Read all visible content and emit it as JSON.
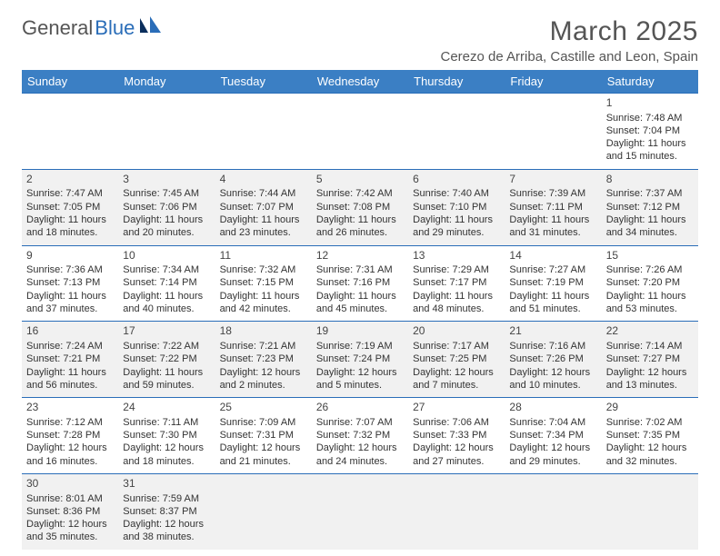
{
  "logo": {
    "part1": "General",
    "part2": "Blue"
  },
  "title": "March 2025",
  "location": "Cerezo de Arriba, Castille and Leon, Spain",
  "headers": [
    "Sunday",
    "Monday",
    "Tuesday",
    "Wednesday",
    "Thursday",
    "Friday",
    "Saturday"
  ],
  "colors": {
    "header_bg": "#3b7fc4",
    "header_fg": "#ffffff",
    "rule": "#2a6db8",
    "alt_row": "#f1f1f1",
    "text": "#333333",
    "title": "#555555"
  },
  "weeks": [
    [
      null,
      null,
      null,
      null,
      null,
      null,
      {
        "n": "1",
        "sr": "Sunrise: 7:48 AM",
        "ss": "Sunset: 7:04 PM",
        "dl": "Daylight: 11 hours and 15 minutes."
      }
    ],
    [
      {
        "n": "2",
        "sr": "Sunrise: 7:47 AM",
        "ss": "Sunset: 7:05 PM",
        "dl": "Daylight: 11 hours and 18 minutes."
      },
      {
        "n": "3",
        "sr": "Sunrise: 7:45 AM",
        "ss": "Sunset: 7:06 PM",
        "dl": "Daylight: 11 hours and 20 minutes."
      },
      {
        "n": "4",
        "sr": "Sunrise: 7:44 AM",
        "ss": "Sunset: 7:07 PM",
        "dl": "Daylight: 11 hours and 23 minutes."
      },
      {
        "n": "5",
        "sr": "Sunrise: 7:42 AM",
        "ss": "Sunset: 7:08 PM",
        "dl": "Daylight: 11 hours and 26 minutes."
      },
      {
        "n": "6",
        "sr": "Sunrise: 7:40 AM",
        "ss": "Sunset: 7:10 PM",
        "dl": "Daylight: 11 hours and 29 minutes."
      },
      {
        "n": "7",
        "sr": "Sunrise: 7:39 AM",
        "ss": "Sunset: 7:11 PM",
        "dl": "Daylight: 11 hours and 31 minutes."
      },
      {
        "n": "8",
        "sr": "Sunrise: 7:37 AM",
        "ss": "Sunset: 7:12 PM",
        "dl": "Daylight: 11 hours and 34 minutes."
      }
    ],
    [
      {
        "n": "9",
        "sr": "Sunrise: 7:36 AM",
        "ss": "Sunset: 7:13 PM",
        "dl": "Daylight: 11 hours and 37 minutes."
      },
      {
        "n": "10",
        "sr": "Sunrise: 7:34 AM",
        "ss": "Sunset: 7:14 PM",
        "dl": "Daylight: 11 hours and 40 minutes."
      },
      {
        "n": "11",
        "sr": "Sunrise: 7:32 AM",
        "ss": "Sunset: 7:15 PM",
        "dl": "Daylight: 11 hours and 42 minutes."
      },
      {
        "n": "12",
        "sr": "Sunrise: 7:31 AM",
        "ss": "Sunset: 7:16 PM",
        "dl": "Daylight: 11 hours and 45 minutes."
      },
      {
        "n": "13",
        "sr": "Sunrise: 7:29 AM",
        "ss": "Sunset: 7:17 PM",
        "dl": "Daylight: 11 hours and 48 minutes."
      },
      {
        "n": "14",
        "sr": "Sunrise: 7:27 AM",
        "ss": "Sunset: 7:19 PM",
        "dl": "Daylight: 11 hours and 51 minutes."
      },
      {
        "n": "15",
        "sr": "Sunrise: 7:26 AM",
        "ss": "Sunset: 7:20 PM",
        "dl": "Daylight: 11 hours and 53 minutes."
      }
    ],
    [
      {
        "n": "16",
        "sr": "Sunrise: 7:24 AM",
        "ss": "Sunset: 7:21 PM",
        "dl": "Daylight: 11 hours and 56 minutes."
      },
      {
        "n": "17",
        "sr": "Sunrise: 7:22 AM",
        "ss": "Sunset: 7:22 PM",
        "dl": "Daylight: 11 hours and 59 minutes."
      },
      {
        "n": "18",
        "sr": "Sunrise: 7:21 AM",
        "ss": "Sunset: 7:23 PM",
        "dl": "Daylight: 12 hours and 2 minutes."
      },
      {
        "n": "19",
        "sr": "Sunrise: 7:19 AM",
        "ss": "Sunset: 7:24 PM",
        "dl": "Daylight: 12 hours and 5 minutes."
      },
      {
        "n": "20",
        "sr": "Sunrise: 7:17 AM",
        "ss": "Sunset: 7:25 PM",
        "dl": "Daylight: 12 hours and 7 minutes."
      },
      {
        "n": "21",
        "sr": "Sunrise: 7:16 AM",
        "ss": "Sunset: 7:26 PM",
        "dl": "Daylight: 12 hours and 10 minutes."
      },
      {
        "n": "22",
        "sr": "Sunrise: 7:14 AM",
        "ss": "Sunset: 7:27 PM",
        "dl": "Daylight: 12 hours and 13 minutes."
      }
    ],
    [
      {
        "n": "23",
        "sr": "Sunrise: 7:12 AM",
        "ss": "Sunset: 7:28 PM",
        "dl": "Daylight: 12 hours and 16 minutes."
      },
      {
        "n": "24",
        "sr": "Sunrise: 7:11 AM",
        "ss": "Sunset: 7:30 PM",
        "dl": "Daylight: 12 hours and 18 minutes."
      },
      {
        "n": "25",
        "sr": "Sunrise: 7:09 AM",
        "ss": "Sunset: 7:31 PM",
        "dl": "Daylight: 12 hours and 21 minutes."
      },
      {
        "n": "26",
        "sr": "Sunrise: 7:07 AM",
        "ss": "Sunset: 7:32 PM",
        "dl": "Daylight: 12 hours and 24 minutes."
      },
      {
        "n": "27",
        "sr": "Sunrise: 7:06 AM",
        "ss": "Sunset: 7:33 PM",
        "dl": "Daylight: 12 hours and 27 minutes."
      },
      {
        "n": "28",
        "sr": "Sunrise: 7:04 AM",
        "ss": "Sunset: 7:34 PM",
        "dl": "Daylight: 12 hours and 29 minutes."
      },
      {
        "n": "29",
        "sr": "Sunrise: 7:02 AM",
        "ss": "Sunset: 7:35 PM",
        "dl": "Daylight: 12 hours and 32 minutes."
      }
    ],
    [
      {
        "n": "30",
        "sr": "Sunrise: 8:01 AM",
        "ss": "Sunset: 8:36 PM",
        "dl": "Daylight: 12 hours and 35 minutes."
      },
      {
        "n": "31",
        "sr": "Sunrise: 7:59 AM",
        "ss": "Sunset: 8:37 PM",
        "dl": "Daylight: 12 hours and 38 minutes."
      },
      null,
      null,
      null,
      null,
      null
    ]
  ]
}
